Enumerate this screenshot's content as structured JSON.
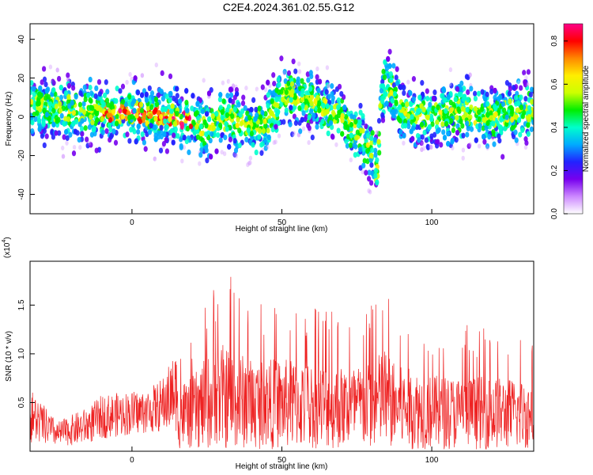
{
  "figure": {
    "title": "C2E4.2024.361.02.55.G12"
  },
  "colors": {
    "axis": "#000000",
    "snr_line": "#ee2222",
    "background": "#ffffff"
  },
  "chart_data": [
    {
      "type": "heatmap",
      "xlabel": "Height of straight line (km)",
      "ylabel": "Frequency (Hz)",
      "xlim": [
        -34,
        134
      ],
      "ylim": [
        -50,
        48
      ],
      "xticks": [
        0,
        50,
        100
      ],
      "yticks": [
        -40,
        -20,
        0,
        20,
        40
      ],
      "colorbar": {
        "label": "Normalized spectral amplitude",
        "range": [
          0.0,
          0.88
        ],
        "ticks": [
          "0.0",
          "0.2",
          "0.4",
          "0.6",
          "0.8"
        ],
        "colormap": [
          "#ffffff",
          "#cc88ff",
          "#7700ee",
          "#2222ff",
          "#00aaff",
          "#00ffcc",
          "#00ee00",
          "#ccff00",
          "#ffee00",
          "#ff8800",
          "#ff0000",
          "#ff0088"
        ]
      },
      "ridge": {
        "x": [
          -34,
          -20,
          -10,
          0,
          10,
          20,
          25,
          30,
          40,
          45,
          50,
          55,
          60,
          70,
          75,
          80,
          82,
          83,
          85,
          90,
          100,
          110,
          120,
          130,
          134
        ],
        "y": [
          6,
          3,
          3,
          2,
          1,
          -2,
          -6,
          0,
          -5,
          -3,
          12,
          10,
          8,
          0,
          -8,
          -18,
          -30,
          10,
          18,
          2,
          0,
          3,
          0,
          3,
          3
        ]
      }
    },
    {
      "type": "line",
      "xlabel": "Height of straight line (km)",
      "ylabel": "SNR (10 * v/v)",
      "scale_label": "(x10",
      "scale_exp": "4",
      "xlim": [
        -34,
        134
      ],
      "ylim": [
        0,
        1.95
      ],
      "xticks": [
        0,
        50,
        100
      ],
      "yticks": [
        0.5,
        1.0,
        1.5
      ],
      "envelope": {
        "x": [
          -34,
          -25,
          -15,
          -10,
          0,
          5,
          10,
          15,
          20,
          25,
          30,
          40,
          50,
          60,
          70,
          80,
          84,
          88,
          95,
          100,
          110,
          120,
          134
        ],
        "baseline": [
          0.22,
          0.12,
          0.18,
          0.32,
          0.42,
          0.46,
          0.48,
          0.5,
          0.55,
          0.6,
          0.62,
          0.6,
          0.55,
          0.58,
          0.52,
          0.52,
          0.7,
          0.55,
          0.5,
          0.48,
          0.45,
          0.45,
          0.42
        ],
        "peak": [
          0.65,
          0.3,
          0.45,
          0.58,
          0.62,
          0.63,
          0.75,
          1.05,
          1.12,
          1.6,
          1.95,
          1.55,
          1.65,
          1.5,
          1.48,
          1.55,
          1.75,
          1.45,
          1.4,
          1.28,
          1.32,
          1.3,
          1.25
        ]
      }
    }
  ]
}
